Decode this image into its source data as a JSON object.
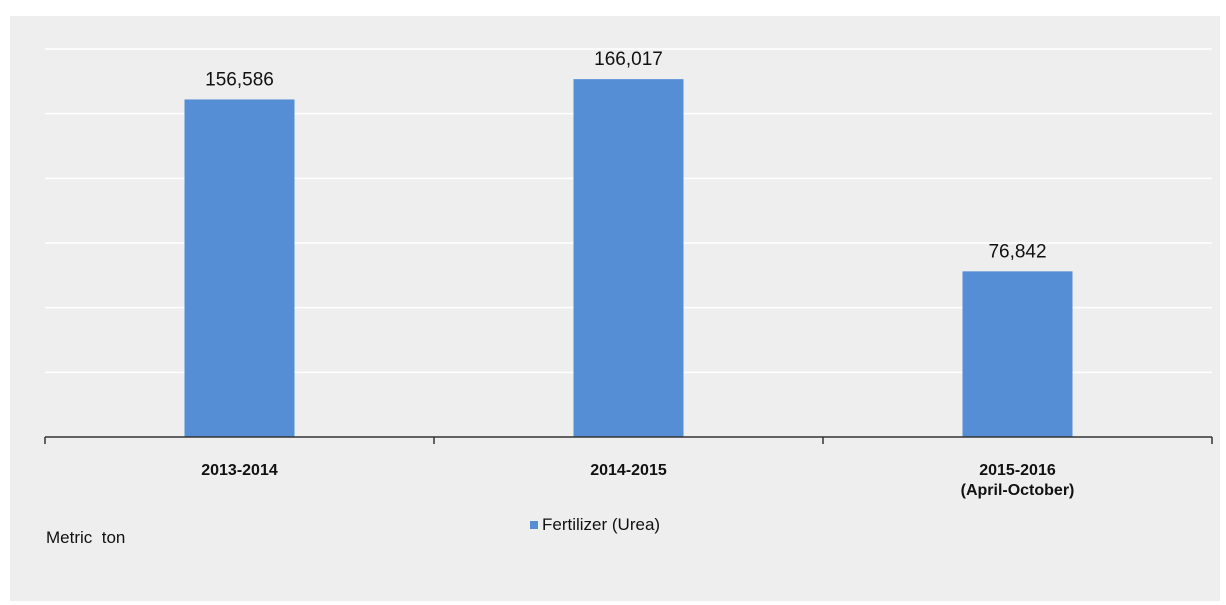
{
  "chart_data": {
    "type": "bar",
    "categories": [
      [
        "2013-2014"
      ],
      [
        "2014-2015"
      ],
      [
        "2015-2016",
        "(April-October)"
      ]
    ],
    "series": [
      {
        "name": "Fertilizer (Urea)",
        "values": [
          156586,
          166017,
          76842
        ],
        "data_labels": [
          "156,586",
          "166,017",
          "76,842"
        ],
        "color": "#558ed5"
      }
    ],
    "ylabel": "Metric  ton",
    "ylim": [
      0,
      180000
    ],
    "y_gridline_step": 30000,
    "grid": true,
    "y_tick_labels_shown": false,
    "legend": "bottom-center",
    "colors": {
      "panel_background": "#eeeeee",
      "gridline": "#ffffff",
      "axis": "#333333"
    }
  }
}
